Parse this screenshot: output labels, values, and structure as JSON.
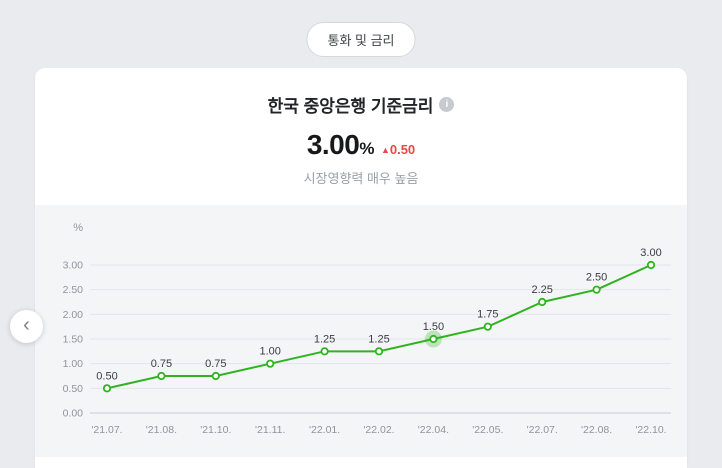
{
  "header": {
    "category_pill": "통화 및 금리"
  },
  "card": {
    "title": "한국 중앙은행 기준금리",
    "info_icon_glyph": "i",
    "value": "3.00",
    "value_unit": "%",
    "change_arrow": "▲",
    "change_value": "0.50",
    "change_color": "#ee4545",
    "subtitle": "시장영향력 매우 높음"
  },
  "nav": {
    "prev_arrow": "‹"
  },
  "chart_data": {
    "type": "line",
    "title": "한국 중앙은행 기준금리",
    "unit": "%",
    "x": [
      "'21.07.",
      "'21.08.",
      "'21.10.",
      "'21.11.",
      "'22.01.",
      "'22.02.",
      "'22.04.",
      "'22.05.",
      "'22.07.",
      "'22.08.",
      "'22.10."
    ],
    "values": [
      0.5,
      0.75,
      0.75,
      1.0,
      1.25,
      1.25,
      1.5,
      1.75,
      2.25,
      2.5,
      3.0
    ],
    "point_labels": [
      "0.50",
      "0.75",
      "0.75",
      "1.00",
      "1.25",
      "1.25",
      "1.50",
      "1.75",
      "2.25",
      "2.50",
      "3.00"
    ],
    "highlight_index": 6,
    "ylim": [
      0,
      3.0
    ],
    "yticks": [
      "3.00",
      "2.50",
      "2.00",
      "1.50",
      "1.00",
      "0.50",
      "0.00"
    ],
    "line_color": "#2fb41f",
    "grid": true,
    "legend": "none"
  }
}
